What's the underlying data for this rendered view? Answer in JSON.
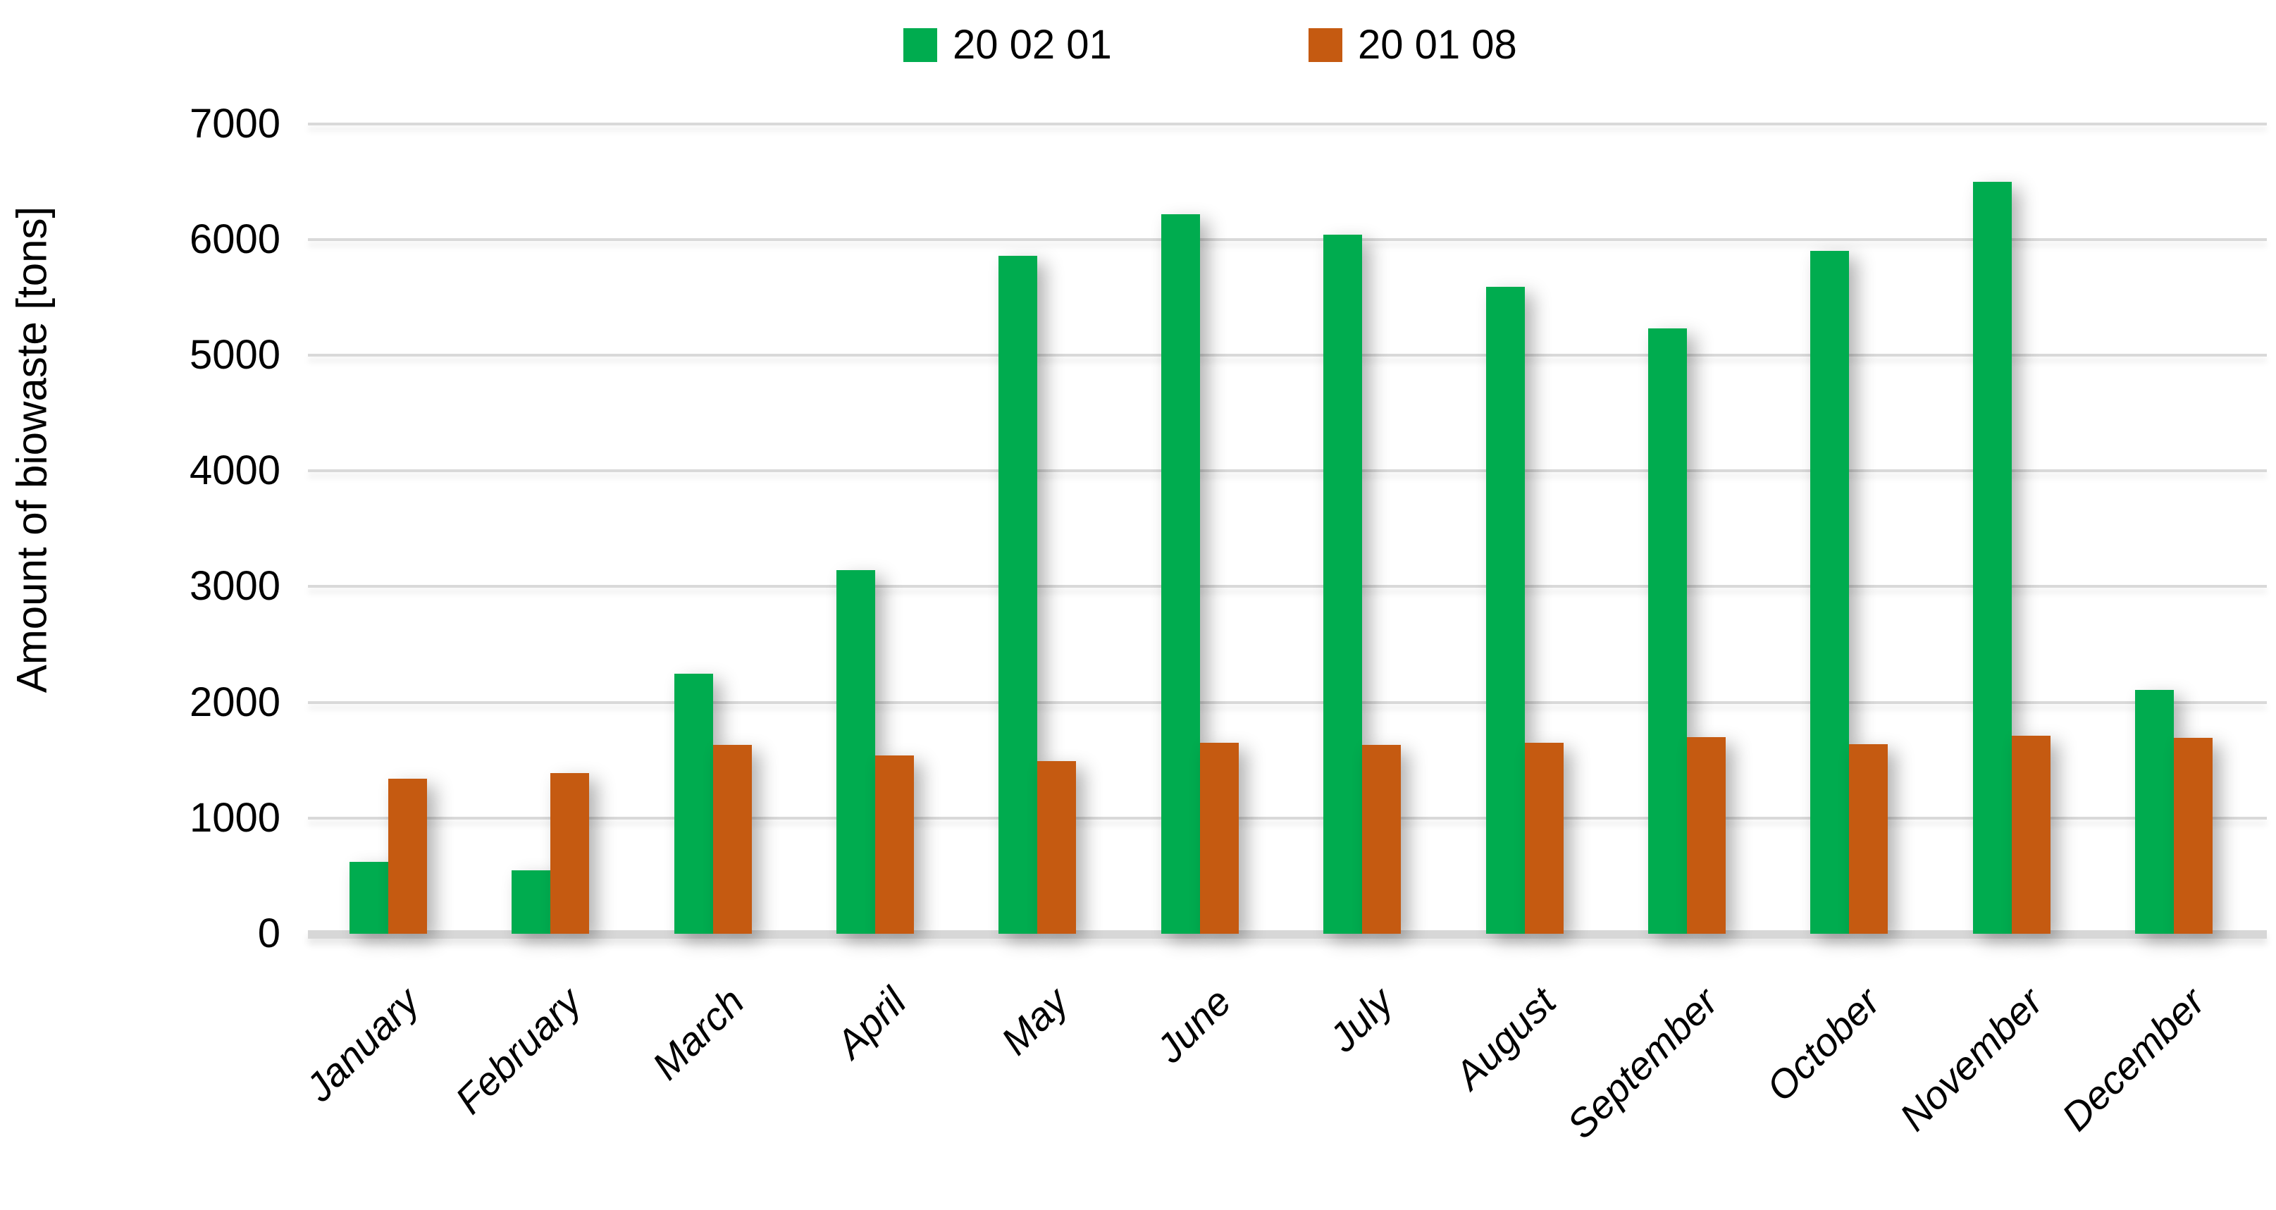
{
  "chart_data": {
    "type": "bar",
    "title": "",
    "categories": [
      "January",
      "February",
      "March",
      "April",
      "May",
      "June",
      "July",
      "August",
      "September",
      "October",
      "November",
      "December"
    ],
    "series": [
      {
        "name": "20 02 01",
        "color": "#00AC4F",
        "values": [
          620,
          550,
          2250,
          3140,
          5860,
          6220,
          6040,
          5590,
          5230,
          5900,
          6500,
          2110
        ]
      },
      {
        "name": "20 01 08",
        "color": "#C55A11",
        "values": [
          1340,
          1390,
          1630,
          1540,
          1490,
          1650,
          1630,
          1650,
          1700,
          1640,
          1710,
          1690
        ]
      }
    ],
    "xlabel": "",
    "ylabel": "Amount of biowaste [tons]",
    "ylim": [
      0,
      7000
    ],
    "yticks": [
      0,
      1000,
      2000,
      3000,
      4000,
      5000,
      6000,
      7000
    ],
    "grid": "horizontal",
    "legend_position": "top-center"
  },
  "colors": {
    "background": "#FFFFFF",
    "gridline": "#D9D9D9",
    "axis_line": "#D7D7D7",
    "text": "#000000",
    "series_green": "#00AC4F",
    "series_orange": "#C55A11"
  }
}
